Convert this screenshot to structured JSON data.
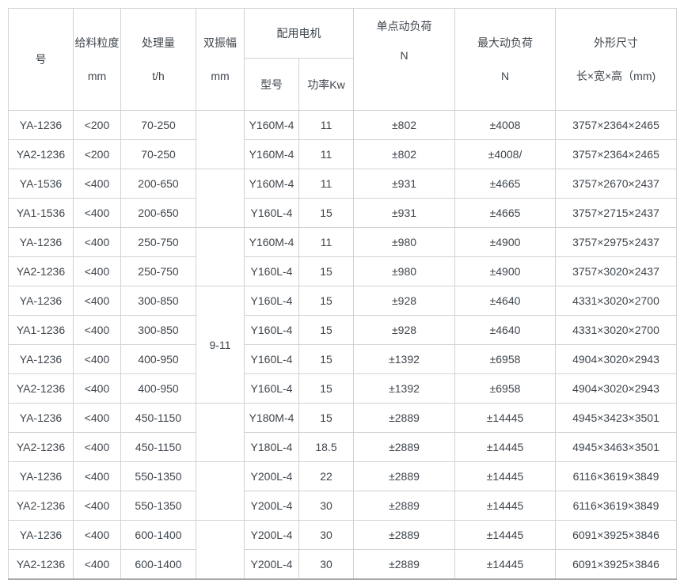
{
  "colors": {
    "text": "#3f464d",
    "border": "#d2d2d2",
    "border_strong": "#a6a6a6",
    "background": "#ffffff"
  },
  "table": {
    "header": {
      "model": "号",
      "feed_line1": "给料粒度",
      "feed_line2": "mm",
      "capacity_line1": "处理量",
      "capacity_line2": "t/h",
      "amplitude_line1": "双振幅",
      "amplitude_line2": "mm",
      "motor_group": "配用电机",
      "motor_model": "型号",
      "motor_power": "功率Kw",
      "single_load_line1": "单点动负荷",
      "single_load_line2": "N",
      "max_load_line1": "最大动负荷",
      "max_load_line2": "N",
      "dims_line1": "外形尺寸",
      "dims_line2": "长×宽×高（mm)"
    },
    "amplitude_groups": [
      {
        "row": 0,
        "span": 2,
        "label": ""
      },
      {
        "row": 2,
        "span": 2,
        "label": ""
      },
      {
        "row": 4,
        "span": 2,
        "label": ""
      },
      {
        "row": 6,
        "span": 4,
        "label": "9-11"
      },
      {
        "row": 10,
        "span": 2,
        "label": ""
      },
      {
        "row": 12,
        "span": 2,
        "label": ""
      },
      {
        "row": 14,
        "span": 2,
        "label": ""
      }
    ],
    "rows": [
      {
        "model": "YA-1236",
        "feed": "<200",
        "capacity": "70-250",
        "motor": "Y160M-4",
        "power": "11",
        "single_load": "±802",
        "max_load": "±4008",
        "dims": "3757×2364×2465"
      },
      {
        "model": "YA2-1236",
        "feed": "<200",
        "capacity": "70-250",
        "motor": "Y160M-4",
        "power": "11",
        "single_load": "±802",
        "max_load": "±4008/",
        "dims": "3757×2364×2465"
      },
      {
        "model": "YA-1536",
        "feed": "<400",
        "capacity": "200-650",
        "motor": "Y160M-4",
        "power": "11",
        "single_load": "±931",
        "max_load": "±4665",
        "dims": "3757×2670×2437"
      },
      {
        "model": "YA1-1536",
        "feed": "<400",
        "capacity": "200-650",
        "motor": "Y160L-4",
        "power": "15",
        "single_load": "±931",
        "max_load": "±4665",
        "dims": "3757×2715×2437"
      },
      {
        "model": "YA-1236",
        "feed": "<400",
        "capacity": "250-750",
        "motor": "Y160M-4",
        "power": "11",
        "single_load": "±980",
        "max_load": "±4900",
        "dims": "3757×2975×2437"
      },
      {
        "model": "YA2-1236",
        "feed": "<400",
        "capacity": "250-750",
        "motor": "Y160L-4",
        "power": "15",
        "single_load": "±980",
        "max_load": "±4900",
        "dims": "3757×3020×2437"
      },
      {
        "model": "YA-1236",
        "feed": "<400",
        "capacity": "300-850",
        "motor": "Y160L-4",
        "power": "15",
        "single_load": "±928",
        "max_load": "±4640",
        "dims": "4331×3020×2700"
      },
      {
        "model": "YA1-1236",
        "feed": "<400",
        "capacity": "300-850",
        "motor": "Y160L-4",
        "power": "15",
        "single_load": "±928",
        "max_load": "±4640",
        "dims": "4331×3020×2700"
      },
      {
        "model": "YA-1236",
        "feed": "<400",
        "capacity": "400-950",
        "motor": "Y160L-4",
        "power": "15",
        "single_load": "±1392",
        "max_load": "±6958",
        "dims": "4904×3020×2943"
      },
      {
        "model": "YA2-1236",
        "feed": "<400",
        "capacity": "400-950",
        "motor": "Y160L-4",
        "power": "15",
        "single_load": "±1392",
        "max_load": "±6958",
        "dims": "4904×3020×2943"
      },
      {
        "model": "YA-1236",
        "feed": "<400",
        "capacity": "450-1150",
        "motor": "Y180M-4",
        "power": "15",
        "single_load": "±2889",
        "max_load": "±14445",
        "dims": "4945×3423×3501"
      },
      {
        "model": "YA2-1236",
        "feed": "<400",
        "capacity": "450-1150",
        "motor": "Y180L-4",
        "power": "18.5",
        "single_load": "±2889",
        "max_load": "±14445",
        "dims": "4945×3463×3501"
      },
      {
        "model": "YA-1236",
        "feed": "<400",
        "capacity": "550-1350",
        "motor": "Y200L-4",
        "power": "22",
        "single_load": "±2889",
        "max_load": "±14445",
        "dims": "6116×3619×3849"
      },
      {
        "model": "YA2-1236",
        "feed": "<400",
        "capacity": "550-1350",
        "motor": "Y200L-4",
        "power": "30",
        "single_load": "±2889",
        "max_load": "±14445",
        "dims": "6116×3619×3849"
      },
      {
        "model": "YA-1236",
        "feed": "<400",
        "capacity": "600-1400",
        "motor": "Y200L-4",
        "power": "30",
        "single_load": "±2889",
        "max_load": "±14445",
        "dims": "6091×3925×3846"
      },
      {
        "model": "YA2-1236",
        "feed": "<400",
        "capacity": "600-1400",
        "motor": "Y200L-4",
        "power": "30",
        "single_load": "±2889",
        "max_load": "±14445",
        "dims": "6091×3925×3846"
      }
    ]
  }
}
